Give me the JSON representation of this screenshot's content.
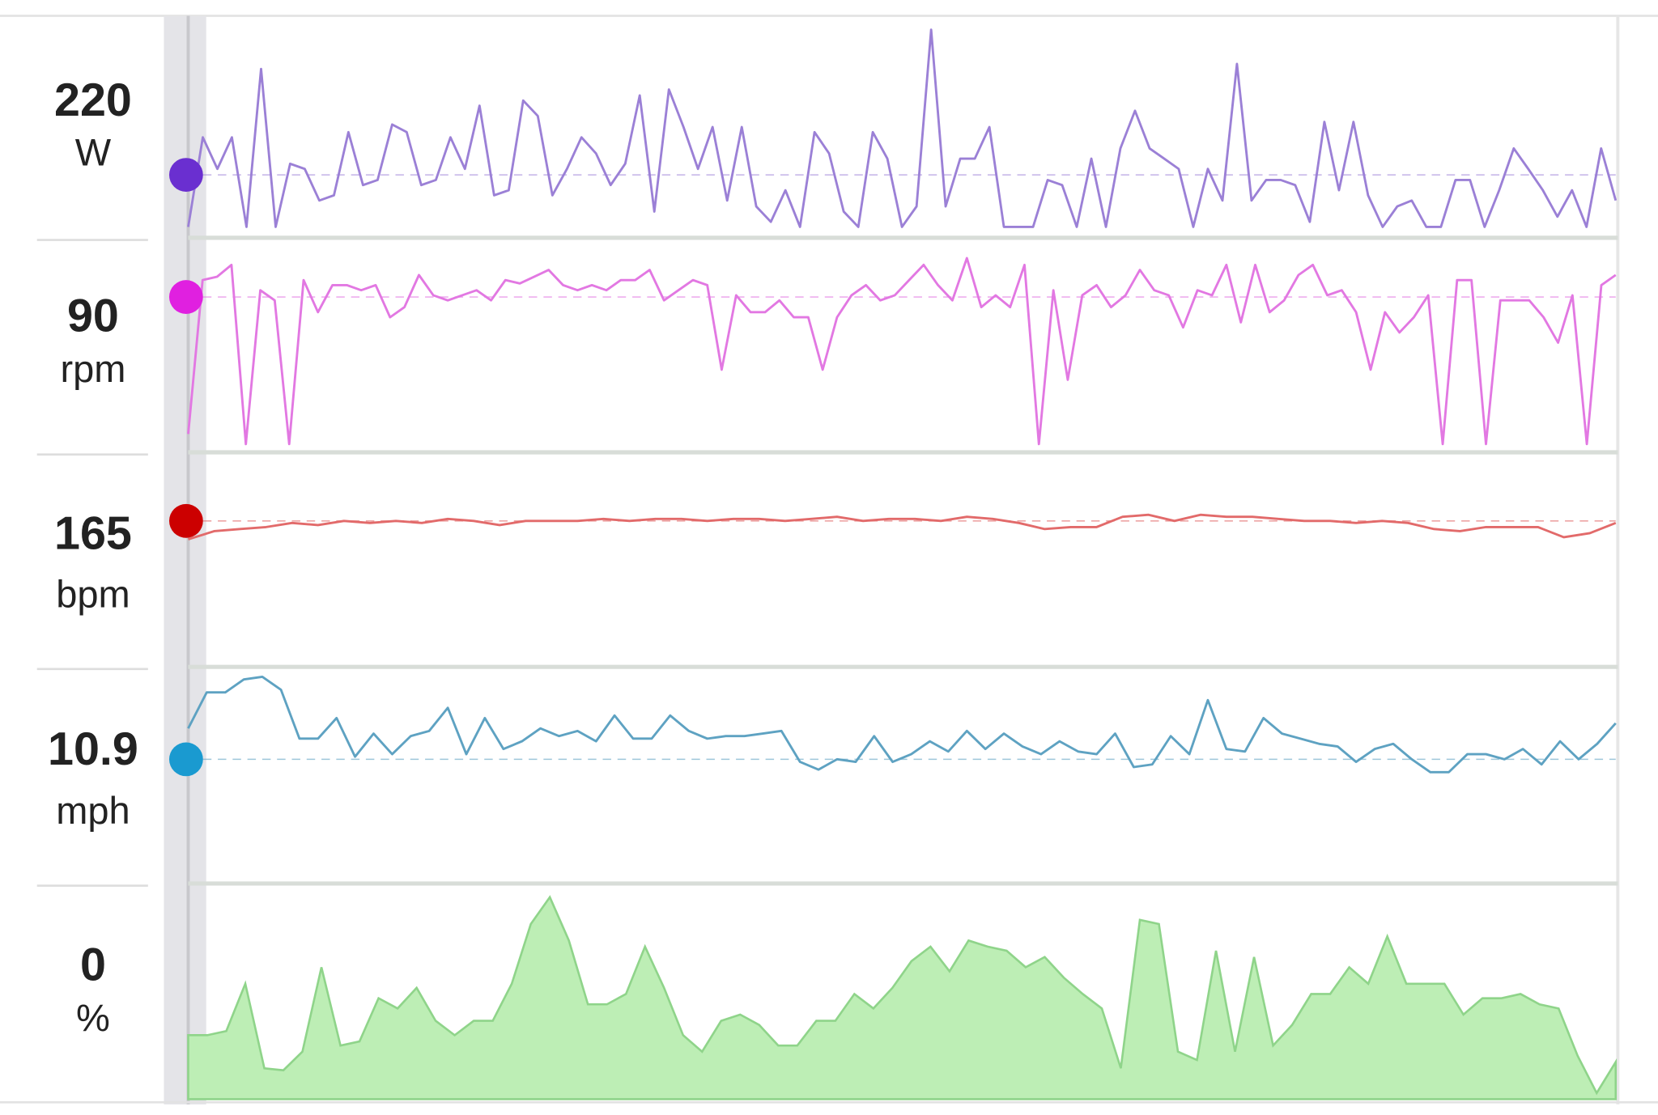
{
  "chart_data": [
    {
      "type": "line",
      "value": 220,
      "unit": "W",
      "color": "#9b80d6",
      "marker_color": "#6a2fd0",
      "ylim": [
        150,
        400
      ],
      "values": [
        159,
        264,
        227,
        264,
        159,
        344,
        159,
        233,
        227,
        190,
        196,
        270,
        208,
        214,
        279,
        270,
        208,
        214,
        264,
        227,
        301,
        196,
        202,
        307,
        289,
        196,
        227,
        264,
        245,
        208,
        233,
        313,
        177,
        320,
        276,
        227,
        276,
        190,
        276,
        183,
        165,
        202,
        159,
        270,
        245,
        177,
        159,
        270,
        239,
        159,
        183,
        390,
        183,
        239,
        239,
        276,
        159,
        159,
        159,
        214,
        208,
        159,
        239,
        159,
        251,
        295,
        251,
        239,
        227,
        159,
        227,
        190,
        350,
        190,
        214,
        214,
        208,
        165,
        282,
        202,
        282,
        196,
        159,
        183,
        190,
        159,
        159,
        214,
        214,
        159,
        202,
        251,
        227,
        202,
        171,
        202,
        159,
        251,
        190
      ]
    },
    {
      "type": "line",
      "value": 90,
      "unit": "rpm",
      "color": "#e278e2",
      "marker_color": "#e020e0",
      "ylim": [
        0,
        120
      ],
      "values": [
        9,
        100,
        102,
        109,
        3,
        94,
        88,
        3,
        100,
        81,
        97,
        97,
        94,
        97,
        78,
        84,
        103,
        91,
        88,
        91,
        94,
        88,
        100,
        98,
        102,
        106,
        97,
        94,
        97,
        94,
        100,
        100,
        106,
        88,
        94,
        100,
        97,
        47,
        91,
        81,
        81,
        88,
        78,
        78,
        47,
        78,
        91,
        97,
        88,
        91,
        100,
        109,
        97,
        88,
        113,
        84,
        91,
        84,
        109,
        3,
        94,
        41,
        91,
        97,
        84,
        91,
        106,
        94,
        91,
        72,
        94,
        91,
        109,
        75,
        109,
        81,
        88,
        103,
        109,
        91,
        94,
        81,
        47,
        81,
        69,
        78,
        91,
        3,
        100,
        100,
        3,
        88,
        88,
        88,
        78,
        63,
        91,
        3,
        97,
        103
      ]
    },
    {
      "type": "line",
      "value": 165,
      "unit": "bpm",
      "color": "#e26a6a",
      "marker_color": "#cc0000",
      "ylim": [
        95,
        195
      ],
      "values": [
        156,
        160,
        161,
        162,
        164,
        163,
        165,
        164,
        165,
        164,
        166,
        165,
        163,
        165,
        165,
        165,
        166,
        165,
        166,
        166,
        165,
        166,
        166,
        165,
        166,
        167,
        165,
        166,
        166,
        165,
        167,
        166,
        164,
        161,
        162,
        162,
        167,
        168,
        165,
        168,
        167,
        167,
        166,
        165,
        165,
        164,
        165,
        164,
        161,
        160,
        162,
        162,
        162,
        157,
        159,
        164
      ]
    },
    {
      "type": "line",
      "value": 10.9,
      "unit": "mph",
      "color": "#5ea2c2",
      "marker_color": "#1a9ad0",
      "ylim": [
        6.2,
        14.2
      ],
      "values": [
        12.1,
        13.5,
        13.5,
        14.0,
        14.1,
        13.6,
        11.7,
        11.7,
        12.5,
        11.0,
        11.9,
        11.1,
        11.8,
        12.0,
        12.9,
        11.1,
        12.5,
        11.3,
        11.6,
        12.1,
        11.8,
        12.0,
        11.6,
        12.6,
        11.7,
        11.7,
        12.6,
        12.0,
        11.7,
        11.8,
        11.8,
        11.9,
        12.0,
        10.8,
        10.5,
        10.9,
        10.8,
        11.8,
        10.8,
        11.1,
        11.6,
        11.2,
        12.0,
        11.3,
        11.9,
        11.4,
        11.1,
        11.6,
        11.2,
        11.1,
        11.9,
        10.6,
        10.7,
        11.8,
        11.1,
        13.2,
        11.3,
        11.2,
        12.5,
        11.9,
        11.7,
        11.5,
        11.4,
        10.8,
        11.3,
        11.5,
        10.9,
        10.4,
        10.4,
        11.1,
        11.1,
        10.9,
        11.3,
        10.7,
        11.6,
        10.9,
        11.5,
        12.3
      ]
    },
    {
      "type": "area",
      "value": 0,
      "unit": "%",
      "color": "#8fd48a",
      "fill": "#bdeeb5",
      "ylim": [
        0,
        10
      ],
      "values": [
        3.1,
        3.1,
        3.3,
        5.6,
        1.5,
        1.4,
        2.3,
        6.4,
        2.6,
        2.8,
        4.9,
        4.4,
        5.4,
        3.8,
        3.1,
        3.8,
        3.8,
        5.6,
        8.5,
        9.8,
        7.7,
        4.6,
        4.6,
        5.1,
        7.4,
        5.4,
        3.1,
        2.3,
        3.8,
        4.1,
        3.6,
        2.6,
        2.6,
        3.8,
        3.8,
        5.1,
        4.4,
        5.4,
        6.7,
        7.4,
        6.2,
        7.7,
        7.4,
        7.2,
        6.4,
        6.9,
        5.9,
        5.1,
        4.4,
        1.5,
        8.7,
        8.5,
        2.3,
        1.9,
        7.2,
        2.3,
        6.9,
        2.6,
        3.6,
        5.1,
        5.1,
        6.4,
        5.6,
        7.9,
        5.6,
        5.6,
        5.6,
        4.1,
        4.9,
        4.9,
        5.1,
        4.6,
        4.4,
        2.1,
        0.3,
        1.8
      ]
    }
  ]
}
